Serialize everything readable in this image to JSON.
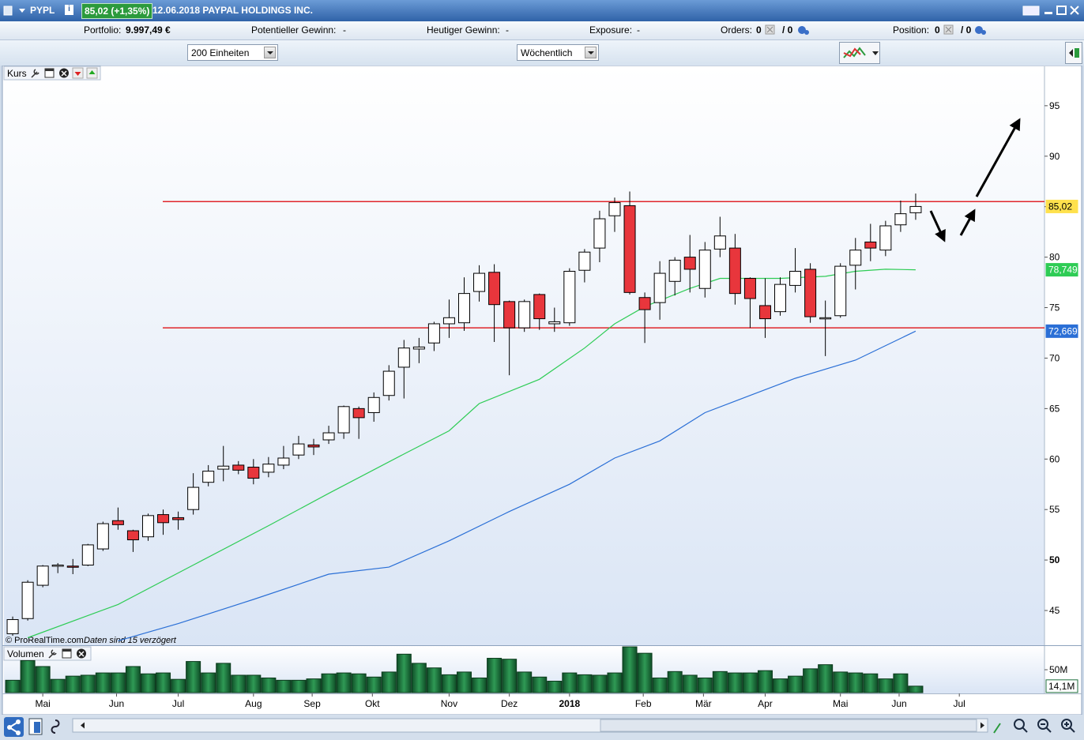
{
  "window": {
    "symbol": "PYPL",
    "quote": "85,02 (+1,35%)",
    "title": "12.06.2018 PAYPAL HOLDINGS INC."
  },
  "info_bar": {
    "portfolio_label": "Portfolio:",
    "portfolio_value": "9.997,49 €",
    "potential_label": "Potentieller Gewinn:",
    "potential_value": "-",
    "today_label": "Heutiger Gewinn:",
    "today_value": "-",
    "exposure_label": "Exposure:",
    "exposure_value": "-",
    "orders_label": "Orders:",
    "orders_open": "0",
    "orders_total": "/ 0",
    "position_label": "Position:",
    "position_open": "0",
    "position_total": "/ 0"
  },
  "toolbar": {
    "quantity": "200 Einheiten",
    "period": "Wöchentlich"
  },
  "footnote": {
    "copyright": "© ProRealTime.com",
    "delay": "Daten sind 15 verzögert"
  },
  "chart_data": [
    {
      "type": "candlestick",
      "title": "Kurs",
      "open": [
        42.7,
        44.2,
        47.5,
        49.4,
        49.4,
        49.5,
        51.1,
        53.9,
        52.9,
        52.3,
        54.5,
        54.2,
        55.0,
        57.7,
        59.0,
        59.4,
        59.2,
        58.7,
        59.4,
        60.4,
        61.4,
        61.9,
        62.6,
        65.0,
        64.6,
        66.3,
        69.1,
        70.9,
        71.5,
        73.4,
        73.5,
        76.6,
        78.5,
        75.6,
        73.0,
        76.3,
        73.4,
        73.5,
        78.7,
        80.9,
        84.1,
        85.1,
        76.0,
        75.5,
        77.6,
        80.0,
        76.9,
        80.8,
        80.9,
        77.9,
        75.2,
        74.6,
        77.2,
        78.8,
        74.0,
        74.2,
        79.2,
        81.5,
        80.7,
        83.2,
        84.4
      ],
      "high": [
        44.4,
        48.0,
        49.5,
        49.7,
        50.1,
        51.6,
        53.8,
        55.2,
        53.0,
        54.6,
        55.0,
        54.8,
        58.6,
        59.4,
        61.3,
        59.8,
        60.0,
        60.2,
        61.3,
        62.3,
        62.0,
        63.3,
        65.3,
        65.2,
        66.6,
        69.3,
        71.8,
        72.0,
        73.6,
        75.8,
        78.0,
        79.2,
        79.3,
        75.7,
        75.8,
        76.4,
        75.0,
        78.9,
        80.8,
        84.6,
        85.9,
        86.5,
        76.5,
        79.6,
        80.0,
        82.2,
        81.5,
        84.0,
        82.3,
        78.0,
        77.9,
        78.0,
        80.9,
        79.4,
        75.7,
        79.4,
        81.9,
        83.3,
        83.6,
        85.6,
        86.3
      ],
      "low": [
        42.5,
        44.0,
        47.3,
        48.7,
        48.6,
        49.4,
        50.9,
        53.0,
        50.8,
        51.9,
        52.5,
        53.0,
        54.5,
        57.3,
        57.8,
        58.5,
        57.5,
        58.2,
        59.0,
        60.0,
        60.4,
        61.5,
        62.0,
        62.0,
        63.7,
        65.8,
        66.0,
        69.5,
        70.7,
        72.0,
        72.7,
        75.6,
        71.6,
        68.3,
        72.6,
        72.8,
        72.6,
        73.2,
        77.5,
        79.5,
        82.5,
        76.3,
        71.5,
        73.8,
        76.2,
        76.5,
        76.0,
        80.0,
        75.3,
        73.0,
        72.0,
        74.2,
        76.5,
        73.5,
        70.2,
        74.0,
        76.8,
        79.6,
        80.1,
        82.5,
        83.7
      ],
      "close": [
        44.1,
        47.8,
        49.4,
        49.5,
        49.3,
        51.5,
        53.6,
        53.5,
        52.0,
        54.4,
        53.7,
        54.0,
        57.2,
        58.8,
        59.3,
        58.9,
        58.1,
        59.5,
        60.1,
        61.5,
        61.2,
        62.6,
        65.2,
        64.1,
        66.1,
        68.7,
        71.0,
        71.1,
        73.4,
        74.0,
        76.4,
        78.4,
        75.3,
        73.0,
        75.6,
        73.9,
        73.6,
        78.6,
        80.5,
        83.8,
        85.4,
        76.5,
        74.8,
        78.4,
        79.7,
        78.8,
        80.7,
        82.1,
        76.4,
        75.9,
        73.9,
        77.3,
        78.6,
        74.1,
        74.0,
        79.1,
        80.7,
        80.9,
        83.1,
        84.3,
        85.02
      ],
      "colors": {
        "up": "#ffffff",
        "down": "#e8363c",
        "wick": "#000000"
      },
      "lines": [
        {
          "color": "#2ecc55",
          "x": [
            1,
            7,
            12,
            17,
            21,
            26,
            29,
            31,
            35,
            38,
            40,
            42,
            45,
            47,
            51,
            54,
            56,
            58,
            60
          ],
          "values": [
            42.3,
            45.6,
            49.5,
            53.4,
            56.6,
            60.5,
            62.8,
            65.5,
            67.9,
            71.0,
            73.4,
            75.1,
            76.9,
            77.9,
            77.9,
            78.1,
            78.6,
            78.8,
            78.749
          ]
        },
        {
          "color": "#2a6fd6",
          "x": [
            7,
            11,
            16,
            21,
            25,
            29,
            33,
            37,
            40,
            43,
            46,
            49,
            52,
            56,
            60
          ],
          "values": [
            42.0,
            43.7,
            46.1,
            48.6,
            49.3,
            51.9,
            54.8,
            57.5,
            60.1,
            61.8,
            64.6,
            66.3,
            68.0,
            69.8,
            72.669
          ]
        }
      ],
      "hlines": [
        85.5,
        73.0
      ],
      "hline_color": "#e0262b",
      "price_labels": [
        {
          "value": 85.02,
          "label": "85,02",
          "color": "#ffe14d"
        },
        {
          "value": 78.749,
          "label": "78,749",
          "color": "#2ecc55"
        },
        {
          "value": 72.669,
          "label": "72,669",
          "color": "#2a6fd6"
        }
      ],
      "xlim": [
        -0.58,
        68.56
      ],
      "ylim": [
        41.56,
        98.9
      ],
      "yticks": [
        45,
        50,
        55,
        60,
        65,
        70,
        75,
        80,
        85,
        90,
        95
      ],
      "xticks": [
        {
          "value": 2,
          "label": "Mai"
        },
        {
          "value": 6.9,
          "label": "Jun"
        },
        {
          "value": 11,
          "label": "Jul"
        },
        {
          "value": 16,
          "label": "Aug"
        },
        {
          "value": 19.9,
          "label": "Sep"
        },
        {
          "value": 23.9,
          "label": "Okt"
        },
        {
          "value": 29,
          "label": "Nov"
        },
        {
          "value": 33,
          "label": "Dez"
        },
        {
          "value": 37,
          "label": "2018"
        },
        {
          "value": 41.9,
          "label": "Feb"
        },
        {
          "value": 45.9,
          "label": "Mär"
        },
        {
          "value": 50,
          "label": "Apr"
        },
        {
          "value": 55,
          "label": "Mai"
        },
        {
          "value": 58.9,
          "label": "Jun"
        },
        {
          "value": 62.9,
          "label": "Jul"
        }
      ]
    },
    {
      "type": "bar",
      "title": "Volumen",
      "color": "#1d6e3c",
      "values": [
        27,
        70,
        57,
        29,
        36,
        38,
        43,
        43,
        57,
        41,
        43,
        29,
        68,
        43,
        64,
        38,
        38,
        32,
        27,
        27,
        30,
        41,
        43,
        41,
        34,
        45,
        84,
        64,
        54,
        39,
        45,
        32,
        75,
        73,
        45,
        34,
        25,
        43,
        39,
        38,
        43,
        100,
        86,
        32,
        46,
        38,
        32,
        46,
        43,
        43,
        48,
        30,
        36,
        52,
        61,
        45,
        43,
        41,
        30,
        41,
        14.1
      ],
      "last_label": {
        "value": 14.1,
        "label": "14,1M"
      },
      "xlim": [
        -0.58,
        68.56
      ],
      "ylim": [
        0,
        101.8
      ],
      "yticks": [
        {
          "value": 50,
          "label": "50M"
        }
      ]
    }
  ]
}
